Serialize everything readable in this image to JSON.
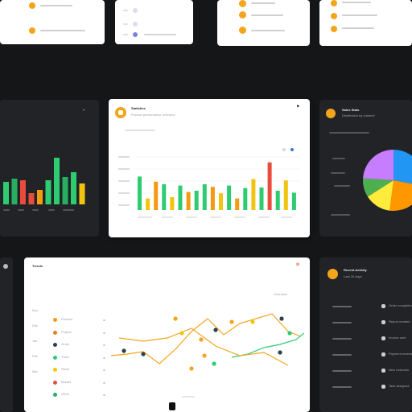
{
  "top_cards": [
    "card-a",
    "card-b",
    "card-c",
    "card-d"
  ],
  "bar_card": {
    "title": "Statistics",
    "subtitle": "Product performance overview",
    "legend": [
      "Jan",
      "Feb",
      "Mar",
      "Apr",
      "May",
      "Jun",
      "Jul",
      "Aug",
      "Sep",
      "Oct",
      "Nov",
      "Dec",
      "Jan",
      "Feb",
      "Mar",
      "Apr",
      "May",
      "Jun",
      "Jul",
      "Aug",
      "Sep",
      "Oct",
      "Nov",
      "Dec",
      "Jan",
      "Feb",
      "Mar",
      "Apr"
    ],
    "chart_values": [
      52,
      18,
      44,
      40,
      20,
      38,
      28,
      30,
      40,
      36,
      26,
      38,
      18,
      34,
      48,
      35,
      74,
      30,
      46,
      27
    ],
    "chart_colors": [
      "#2ecc71",
      "#f1c40f",
      "#f39c12",
      "#2ecc71",
      "#f1c40f",
      "#2ecc71",
      "#f39c12",
      "#2ecc71",
      "#2ecc71",
      "#f39c12",
      "#f1c40f",
      "#2ecc71",
      "#f39c12",
      "#2ecc71",
      "#f1c40f",
      "#2ecc71",
      "#e74c3c",
      "#2ecc71",
      "#f1c40f",
      "#2ecc71"
    ]
  },
  "left_dark_card": {
    "chart_values": [
      28,
      32,
      30,
      14,
      18,
      30,
      58,
      34,
      40,
      26
    ],
    "chart_colors": [
      "#2ecc71",
      "#27ae60",
      "#e74c3c",
      "#e74c3c",
      "#f39c12",
      "#2ecc71",
      "#2ecc71",
      "#27ae60",
      "#2ecc71",
      "#f1c40f"
    ]
  },
  "pie_card": {
    "title": "Sales Stats",
    "subtitle": "Distribution by channel",
    "slices": [
      {
        "color": "#2196f3",
        "value": 28
      },
      {
        "color": "#ff9800",
        "value": 24
      },
      {
        "color": "#ffeb3b",
        "value": 14
      },
      {
        "color": "#4caf50",
        "value": 10
      },
      {
        "color": "#c77dff",
        "value": 24
      }
    ]
  },
  "line_card": {
    "title": "Trends",
    "dropdown": "Overview",
    "side_labels": [
      "Nov",
      "Dec",
      "Jan",
      "Feb",
      "Mar"
    ],
    "rows": [
      "Product",
      "Project",
      "Order",
      "Track",
      "Stock",
      "Market",
      "Other"
    ],
    "footer_icon": "chevron-icon"
  },
  "list_card": {
    "title": "Recent Activity",
    "subtitle": "Last 30 days",
    "rows": [
      "Order completed",
      "Report created",
      "Invoice sent",
      "Payment received",
      "New customer",
      "Task assigned"
    ]
  }
}
